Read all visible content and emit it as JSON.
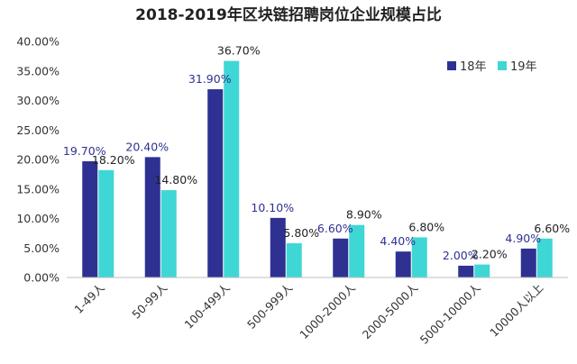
{
  "chart_data": {
    "type": "bar",
    "title": "2018-2019年区块链招聘岗位企业规模占比",
    "categories": [
      "1-49人",
      "50-99人",
      "100-499人",
      "500-999人",
      "1000-2000人",
      "2000-5000人",
      "5000-10000人",
      "10000人以上"
    ],
    "series": [
      {
        "name": "18年",
        "color": "#2E3192",
        "values": [
          19.7,
          20.4,
          31.9,
          10.1,
          6.6,
          4.4,
          2.0,
          4.9
        ],
        "labels": [
          "19.70%",
          "20.40%",
          "31.90%",
          "10.10%",
          "6.60%",
          "4.40%",
          "2.00%",
          "4.90%"
        ],
        "label_color": "#2E3192"
      },
      {
        "name": "19年",
        "color": "#3FD6D6",
        "values": [
          18.2,
          14.8,
          36.7,
          5.8,
          8.9,
          6.8,
          2.2,
          6.6
        ],
        "labels": [
          "18.20%",
          "14.80%",
          "36.70%",
          "5.80%",
          "8.90%",
          "6.80%",
          "2.20%",
          "6.60%"
        ],
        "label_color": "#222222"
      }
    ],
    "ylim": [
      0,
      40
    ],
    "yticks": [
      "0.00%",
      "5.00%",
      "10.00%",
      "15.00%",
      "20.00%",
      "25.00%",
      "30.00%",
      "35.00%",
      "40.00%"
    ],
    "xlabel": "",
    "ylabel": "",
    "grid": false,
    "legend_position": "top-right"
  }
}
